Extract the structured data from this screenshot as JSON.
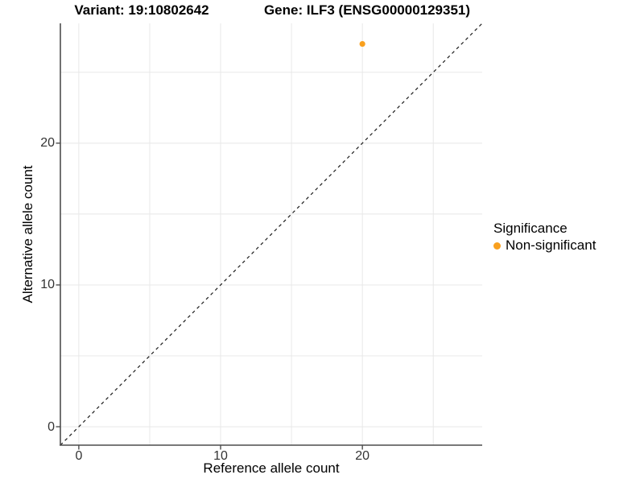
{
  "titles": {
    "variant": "Variant: 19:10802642",
    "gene": "Gene: ILF3 (ENSG00000129351)"
  },
  "chart_data": {
    "type": "scatter",
    "title_left": "Variant: 19:10802642",
    "title_right": "Gene: ILF3 (ENSG00000129351)",
    "xlabel": "Reference allele count",
    "ylabel": "Alternative allele count",
    "xlim": [
      -1.3,
      28.45
    ],
    "ylim": [
      -1.3,
      28.45
    ],
    "x_ticks": [
      0,
      10,
      20
    ],
    "y_ticks": [
      0,
      10,
      20
    ],
    "grid_positions": [
      0,
      5,
      10,
      15,
      20,
      25
    ],
    "grid_on": true,
    "points": [
      {
        "x": 20,
        "y": 27,
        "series": "Non-significant"
      }
    ],
    "series_colors": {
      "Non-significant": "#F9A01E"
    },
    "reference_line": {
      "equation": "y = x",
      "style": "dashed",
      "color": "#1a1a1a"
    },
    "legend": {
      "title": "Significance",
      "position": "right-center",
      "items": [
        {
          "label": "Non-significant",
          "color": "#F9A01E"
        }
      ]
    }
  },
  "colors": {
    "point_orange": "#F9A01E",
    "gridline": "#e8e8e8",
    "axis_line": "#4d4d4d",
    "tick_text": "#333333",
    "dashed_line": "#1a1a1a",
    "background": "#ffffff"
  }
}
